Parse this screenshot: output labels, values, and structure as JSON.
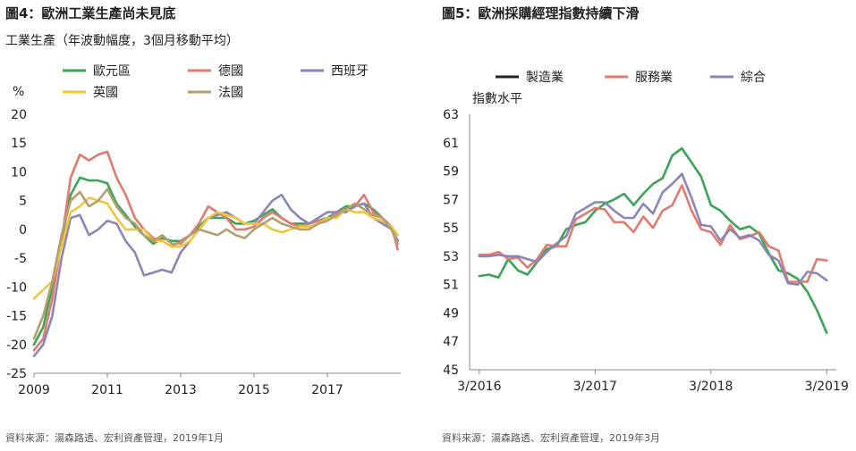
{
  "left": {
    "title": "圖4：歐洲工業生產尚未見底",
    "subtitle": "工業生產（年波動幅度，3個月移動平均）",
    "source": "資料來源：湯森路透、宏利資產管理，2019年1月",
    "unit": "%"
  },
  "right": {
    "title": "圖5：歐洲採購經理指數持續下滑",
    "source": "資料來源：湯森路透、宏利資產管理，2019年3月",
    "ylabel": "指數水平"
  },
  "chart_data": [
    {
      "type": "line",
      "title": "圖4：歐洲工業生產尚未見底",
      "subtitle": "工業生產（年波動幅度，3個月移動平均）",
      "ylabel": "%",
      "xlim": [
        2009.0,
        2019.0
      ],
      "ylim": [
        -25,
        20
      ],
      "x_ticks": [
        2009,
        2011,
        2013,
        2015,
        2017
      ],
      "y_ticks": [
        20,
        15,
        10,
        5,
        0,
        -5,
        -10,
        -15,
        -20,
        -25
      ],
      "grid": false,
      "legend_position": "top",
      "series": [
        {
          "name": "歐元區",
          "color": "#3aa655",
          "x": [
            2009.0,
            2009.25,
            2009.5,
            2009.75,
            2010.0,
            2010.25,
            2010.5,
            2010.75,
            2011.0,
            2011.25,
            2011.5,
            2011.75,
            2012.0,
            2012.25,
            2012.5,
            2012.75,
            2013.0,
            2013.25,
            2013.5,
            2013.75,
            2014.0,
            2014.25,
            2014.5,
            2014.75,
            2015.0,
            2015.25,
            2015.5,
            2015.75,
            2016.0,
            2016.25,
            2016.5,
            2016.75,
            2017.0,
            2017.25,
            2017.5,
            2017.75,
            2018.0,
            2018.25,
            2018.5,
            2018.75,
            2018.92
          ],
          "y": [
            -20,
            -17,
            -10,
            -2,
            6,
            9,
            8.5,
            8.5,
            8,
            4.5,
            2.5,
            0.5,
            -1,
            -2.5,
            -1.5,
            -2,
            -2,
            -1,
            0.5,
            2,
            2,
            2,
            1,
            1,
            1.5,
            2.5,
            3.5,
            2,
            1,
            1,
            1,
            1.5,
            2,
            3,
            4,
            4,
            4.5,
            3.5,
            2,
            0,
            -2
          ]
        },
        {
          "name": "德國",
          "color": "#e07b6e",
          "x": [
            2009.0,
            2009.25,
            2009.5,
            2009.75,
            2010.0,
            2010.25,
            2010.5,
            2010.75,
            2011.0,
            2011.25,
            2011.5,
            2011.75,
            2012.0,
            2012.25,
            2012.5,
            2012.75,
            2013.0,
            2013.25,
            2013.5,
            2013.75,
            2014.0,
            2014.25,
            2014.5,
            2014.75,
            2015.0,
            2015.25,
            2015.5,
            2015.75,
            2016.0,
            2016.25,
            2016.5,
            2016.75,
            2017.0,
            2017.25,
            2017.5,
            2017.75,
            2018.0,
            2018.25,
            2018.5,
            2018.75,
            2018.92
          ],
          "y": [
            -21,
            -19,
            -12,
            -2,
            9,
            13,
            12,
            13,
            13.5,
            9,
            6,
            2,
            0,
            -1.5,
            -2,
            -3,
            -2,
            -1,
            1,
            4,
            3,
            2,
            0,
            0,
            0.5,
            2,
            3,
            2,
            1,
            0.5,
            1,
            1.5,
            1.5,
            3,
            3.5,
            4,
            6,
            3,
            2,
            0.5,
            -3.5
          ]
        },
        {
          "name": "西班牙",
          "color": "#8c85b9",
          "x": [
            2009.0,
            2009.25,
            2009.5,
            2009.75,
            2010.0,
            2010.25,
            2010.5,
            2010.75,
            2011.0,
            2011.25,
            2011.5,
            2011.75,
            2012.0,
            2012.25,
            2012.5,
            2012.75,
            2013.0,
            2013.25,
            2013.5,
            2013.75,
            2014.0,
            2014.25,
            2014.5,
            2014.75,
            2015.0,
            2015.25,
            2015.5,
            2015.75,
            2016.0,
            2016.25,
            2016.5,
            2016.75,
            2017.0,
            2017.25,
            2017.5,
            2017.75,
            2018.0,
            2018.25,
            2018.5,
            2018.75,
            2018.92
          ],
          "y": [
            -22,
            -20,
            -15,
            -5,
            2,
            2.5,
            -1,
            0,
            1.5,
            1,
            -2,
            -4,
            -8,
            -7.5,
            -7,
            -7.5,
            -4,
            -2,
            0,
            2,
            2.5,
            3,
            2,
            1,
            1,
            3,
            5,
            6,
            3.5,
            2,
            1,
            2,
            3,
            3,
            3,
            4,
            4.5,
            2,
            1,
            0,
            -2
          ]
        },
        {
          "name": "英國",
          "color": "#f2c53d",
          "x": [
            2009.0,
            2009.25,
            2009.5,
            2009.75,
            2010.0,
            2010.25,
            2010.5,
            2010.75,
            2011.0,
            2011.25,
            2011.5,
            2011.75,
            2012.0,
            2012.25,
            2012.5,
            2012.75,
            2013.0,
            2013.25,
            2013.5,
            2013.75,
            2014.0,
            2014.25,
            2014.5,
            2014.75,
            2015.0,
            2015.25,
            2015.5,
            2015.75,
            2016.0,
            2016.25,
            2016.5,
            2016.75,
            2017.0,
            2017.25,
            2017.5,
            2017.75,
            2018.0,
            2018.25,
            2018.5,
            2018.75,
            2018.92
          ],
          "y": [
            -12,
            -10.5,
            -9,
            -3,
            3,
            4,
            5.5,
            5,
            4.5,
            2,
            0,
            0,
            0,
            -2,
            -2,
            -3,
            -3,
            -2,
            0,
            2,
            3,
            2.5,
            2,
            1,
            1,
            1,
            0,
            -0.5,
            0,
            0.5,
            0.5,
            1,
            2,
            2,
            3.5,
            3,
            3,
            2,
            1.5,
            0.5,
            -1
          ]
        },
        {
          "name": "法國",
          "color": "#b3a06e",
          "x": [
            2009.0,
            2009.25,
            2009.5,
            2009.75,
            2010.0,
            2010.25,
            2010.5,
            2010.75,
            2011.0,
            2011.25,
            2011.5,
            2011.75,
            2012.0,
            2012.25,
            2012.5,
            2012.75,
            2013.0,
            2013.25,
            2013.5,
            2013.75,
            2014.0,
            2014.25,
            2014.5,
            2014.75,
            2015.0,
            2015.25,
            2015.5,
            2015.75,
            2016.0,
            2016.25,
            2016.5,
            2016.75,
            2017.0,
            2017.25,
            2017.5,
            2017.75,
            2018.0,
            2018.25,
            2018.5,
            2018.75,
            2018.92
          ],
          "y": [
            -19,
            -15,
            -9,
            -1,
            5,
            6.5,
            4,
            5,
            7,
            4,
            2,
            1,
            -1,
            -2,
            -1,
            -2.5,
            -2.5,
            -1,
            0,
            -0.5,
            -1,
            0,
            -1,
            -1.5,
            0,
            1,
            2,
            1,
            0.5,
            0,
            0,
            1,
            1.5,
            2.5,
            3.5,
            4.5,
            3.5,
            2.5,
            2,
            0,
            -2.5
          ]
        }
      ]
    },
    {
      "type": "line",
      "title": "圖5：歐洲採購經理指數持續下滑",
      "ylabel": "指數水平",
      "xlim": [
        2016.083,
        2019.25
      ],
      "ylim": [
        45,
        63
      ],
      "x_ticks": [
        "3/2016",
        "3/2017",
        "3/2018",
        "3/2019"
      ],
      "x_tick_values": [
        2016.167,
        2017.167,
        2018.167,
        2019.167
      ],
      "y_ticks": [
        63,
        61,
        59,
        57,
        55,
        53,
        51,
        49,
        47,
        45
      ],
      "grid": false,
      "legend_position": "top",
      "series": [
        {
          "name": "製造業",
          "color": "#3aa655",
          "legend_color": "#222222",
          "x": [
            2016.167,
            2016.25,
            2016.333,
            2016.417,
            2016.5,
            2016.583,
            2016.667,
            2016.75,
            2016.833,
            2016.917,
            2017.0,
            2017.083,
            2017.167,
            2017.25,
            2017.333,
            2017.417,
            2017.5,
            2017.583,
            2017.667,
            2017.75,
            2017.833,
            2017.917,
            2018.0,
            2018.083,
            2018.167,
            2018.25,
            2018.333,
            2018.417,
            2018.5,
            2018.583,
            2018.667,
            2018.75,
            2018.833,
            2018.917,
            2019.0,
            2019.083,
            2019.167
          ],
          "y": [
            51.6,
            51.7,
            51.5,
            52.8,
            52.0,
            51.7,
            52.6,
            53.5,
            53.7,
            54.9,
            55.2,
            55.4,
            56.2,
            56.7,
            57.0,
            57.4,
            56.6,
            57.4,
            58.1,
            58.5,
            60.1,
            60.6,
            59.6,
            58.6,
            56.6,
            56.2,
            55.5,
            54.9,
            55.1,
            54.6,
            53.2,
            52.0,
            51.8,
            51.4,
            50.5,
            49.2,
            47.6
          ]
        },
        {
          "name": "服務業",
          "color": "#e07b6e",
          "x": [
            2016.167,
            2016.25,
            2016.333,
            2016.417,
            2016.5,
            2016.583,
            2016.667,
            2016.75,
            2016.833,
            2016.917,
            2017.0,
            2017.083,
            2017.167,
            2017.25,
            2017.333,
            2017.417,
            2017.5,
            2017.583,
            2017.667,
            2017.75,
            2017.833,
            2017.917,
            2018.0,
            2018.083,
            2018.167,
            2018.25,
            2018.333,
            2018.417,
            2018.5,
            2018.583,
            2018.667,
            2018.75,
            2018.833,
            2018.917,
            2019.0,
            2019.083,
            2019.167
          ],
          "y": [
            53.1,
            53.1,
            53.3,
            52.8,
            52.9,
            52.2,
            52.8,
            53.8,
            53.7,
            53.7,
            55.6,
            56.0,
            56.4,
            56.3,
            55.4,
            55.4,
            54.7,
            55.8,
            55.0,
            56.2,
            56.6,
            58.0,
            56.2,
            54.9,
            54.7,
            53.8,
            55.2,
            54.2,
            54.4,
            54.7,
            53.7,
            53.4,
            51.2,
            51.2,
            51.2,
            52.8,
            52.7
          ]
        },
        {
          "name": "綜合",
          "color": "#8c85b9",
          "x": [
            2016.167,
            2016.25,
            2016.333,
            2016.417,
            2016.5,
            2016.583,
            2016.667,
            2016.75,
            2016.833,
            2016.917,
            2017.0,
            2017.083,
            2017.167,
            2017.25,
            2017.333,
            2017.417,
            2017.5,
            2017.583,
            2017.667,
            2017.75,
            2017.833,
            2017.917,
            2018.0,
            2018.083,
            2018.167,
            2018.25,
            2018.333,
            2018.417,
            2018.5,
            2018.583,
            2018.667,
            2018.75,
            2018.833,
            2018.917,
            2019.0,
            2019.083,
            2019.167
          ],
          "y": [
            53.0,
            53.0,
            53.1,
            53.0,
            53.0,
            52.8,
            52.6,
            53.3,
            53.9,
            54.4,
            56.0,
            56.4,
            56.8,
            56.8,
            56.2,
            55.7,
            55.7,
            56.7,
            56.0,
            57.5,
            58.1,
            58.8,
            57.1,
            55.2,
            55.1,
            54.1,
            54.9,
            54.3,
            54.5,
            54.1,
            53.1,
            52.7,
            51.1,
            51.0,
            51.9,
            51.8,
            51.3
          ]
        }
      ]
    }
  ]
}
